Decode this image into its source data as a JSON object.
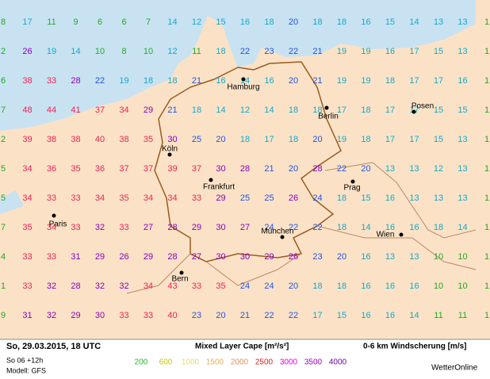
{
  "header": {
    "date": "So, 29.03.2015, 18 UTC",
    "run": "So 06 +12h",
    "model": "Modell: GFS",
    "cape_title": "Mixed Layer Cape [m²/s²]",
    "shear_title": "0-6 km Windscherung [m/s]",
    "brand": "WetterOnline"
  },
  "cape_legend": [
    {
      "label": "200",
      "color": "#22bb22"
    },
    {
      "label": "600",
      "color": "#c8c800"
    },
    {
      "label": "1000",
      "color": "#e8d870"
    },
    {
      "label": "1500",
      "color": "#e8b050"
    },
    {
      "label": "2000",
      "color": "#e89060"
    },
    {
      "label": "2500",
      "color": "#e02020"
    },
    {
      "label": "3000",
      "color": "#e000e0"
    },
    {
      "label": "3500",
      "color": "#a000c8"
    },
    {
      "label": "4000",
      "color": "#7000a0"
    }
  ],
  "shear_colors": [
    {
      "max": 11,
      "color": "#22aa22"
    },
    {
      "max": 19,
      "color": "#11aacc"
    },
    {
      "max": 25,
      "color": "#2255dd"
    },
    {
      "max": 32,
      "color": "#8800bb"
    },
    {
      "max": 99,
      "color": "#ee2255"
    }
  ],
  "grid": [
    [
      8,
      17,
      11,
      9,
      6,
      6,
      7,
      14,
      12,
      15,
      16,
      18,
      20,
      18,
      18,
      16,
      15,
      14,
      13,
      13,
      1
    ],
    [
      2,
      26,
      19,
      14,
      10,
      8,
      10,
      12,
      11,
      18,
      22,
      23,
      22,
      21,
      19,
      19,
      16,
      17,
      15,
      13,
      1
    ],
    [
      6,
      38,
      33,
      28,
      22,
      19,
      18,
      18,
      21,
      16,
      14,
      16,
      20,
      21,
      19,
      19,
      18,
      17,
      17,
      16,
      1
    ],
    [
      7,
      48,
      44,
      41,
      37,
      34,
      29,
      21,
      18,
      14,
      12,
      14,
      18,
      18,
      17,
      18,
      17,
      17,
      15,
      15,
      1
    ],
    [
      2,
      39,
      38,
      38,
      40,
      38,
      35,
      30,
      25,
      20,
      18,
      17,
      18,
      20,
      19,
      18,
      17,
      17,
      15,
      13,
      1
    ],
    [
      5,
      34,
      36,
      35,
      36,
      37,
      37,
      39,
      37,
      30,
      28,
      21,
      20,
      28,
      22,
      20,
      13,
      13,
      12,
      13,
      1
    ],
    [
      5,
      34,
      33,
      33,
      34,
      35,
      34,
      34,
      33,
      29,
      25,
      25,
      26,
      24,
      18,
      15,
      16,
      13,
      13,
      13,
      1
    ],
    [
      7,
      35,
      34,
      33,
      32,
      33,
      27,
      28,
      29,
      30,
      27,
      24,
      22,
      22,
      18,
      14,
      16,
      16,
      18,
      14,
      1
    ],
    [
      4,
      33,
      33,
      31,
      29,
      26,
      29,
      28,
      27,
      30,
      30,
      29,
      26,
      23,
      20,
      16,
      13,
      13,
      10,
      10,
      1
    ],
    [
      1,
      33,
      32,
      28,
      32,
      32,
      34,
      43,
      33,
      35,
      24,
      24,
      20,
      18,
      18,
      16,
      16,
      16,
      10,
      10,
      1
    ],
    [
      9,
      31,
      32,
      29,
      30,
      33,
      33,
      40,
      23,
      20,
      21,
      22,
      22,
      17,
      15,
      16,
      16,
      14,
      11,
      11,
      1
    ]
  ],
  "cities": [
    "Hamburg",
    "Berlin",
    "Posen",
    "Köln",
    "Frankfurt",
    "Prag",
    "Paris",
    "München",
    "Wien",
    "Bern"
  ]
}
